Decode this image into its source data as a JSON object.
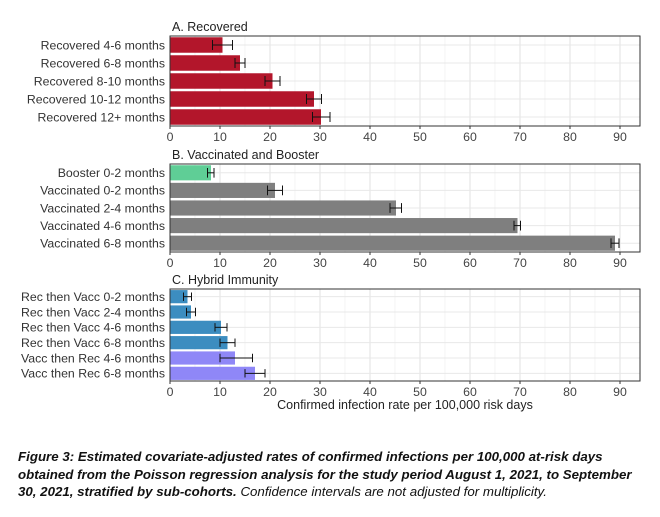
{
  "chart_data": [
    {
      "type": "bar",
      "orientation": "horizontal",
      "title": "A. Recovered",
      "categories": [
        "Recovered 4-6 months",
        "Recovered 6-8 months",
        "Recovered 8-10 months",
        "Recovered 10-12 months",
        "Recovered 12+ months"
      ],
      "values": [
        10.5,
        14.0,
        20.5,
        28.8,
        30.2
      ],
      "ci_low": [
        8.5,
        13.0,
        19.0,
        27.3,
        28.5
      ],
      "ci_high": [
        12.5,
        15.0,
        22.0,
        30.3,
        32.0
      ],
      "colors": [
        "#b3162b",
        "#b3162b",
        "#b3162b",
        "#b3162b",
        "#b3162b"
      ],
      "xlim": [
        0,
        94
      ],
      "xticks": [
        0,
        10,
        20,
        30,
        40,
        50,
        60,
        70,
        80,
        90
      ],
      "xlabel": ""
    },
    {
      "type": "bar",
      "orientation": "horizontal",
      "title": "B. Vaccinated and Booster",
      "categories": [
        "Booster 0-2 months",
        "Vaccinated 0-2 months",
        "Vaccinated 2-4 months",
        "Vaccinated 4-6 months",
        "Vaccinated 6-8 months"
      ],
      "values": [
        8.2,
        21.0,
        45.2,
        69.5,
        89.0
      ],
      "ci_low": [
        7.5,
        19.5,
        44.0,
        68.8,
        88.2
      ],
      "ci_high": [
        8.8,
        22.5,
        46.3,
        70.1,
        89.8
      ],
      "colors": [
        "#5fce96",
        "#7f7f7f",
        "#7f7f7f",
        "#7f7f7f",
        "#7f7f7f"
      ],
      "xlim": [
        0,
        94
      ],
      "xticks": [
        0,
        10,
        20,
        30,
        40,
        50,
        60,
        70,
        80,
        90
      ],
      "xlabel": ""
    },
    {
      "type": "bar",
      "orientation": "horizontal",
      "title": "C. Hybrid Immunity",
      "categories": [
        "Rec then Vacc 0-2 months",
        "Rec then Vacc 2-4 months",
        "Rec then Vacc 4-6 months",
        "Rec then Vacc 6-8 months",
        "Vacc then Rec 4-6 months",
        "Vacc then Rec 6-8 months"
      ],
      "values": [
        3.5,
        4.2,
        10.2,
        11.5,
        13.0,
        17.0
      ],
      "ci_low": [
        2.7,
        3.3,
        9.0,
        10.0,
        10.0,
        15.0
      ],
      "ci_high": [
        4.3,
        5.1,
        11.4,
        13.0,
        16.5,
        19.0
      ],
      "colors": [
        "#3c8dc0",
        "#3c8dc0",
        "#3c8dc0",
        "#3c8dc0",
        "#8f87f7",
        "#8f87f7"
      ],
      "xlim": [
        0,
        94
      ],
      "xticks": [
        0,
        10,
        20,
        30,
        40,
        50,
        60,
        70,
        80,
        90
      ],
      "xlabel": "Confirmed infection rate per 100,000 risk days"
    }
  ],
  "caption": {
    "main": "Figure 3: Estimated covariate-adjusted rates of confirmed infections per 100,000 at-risk days obtained from the Poisson regression analysis for the study period August 1, 2021, to September 30, 2021, stratified by sub-cohorts.",
    "note": "Confidence intervals are not adjusted for multiplicity."
  }
}
